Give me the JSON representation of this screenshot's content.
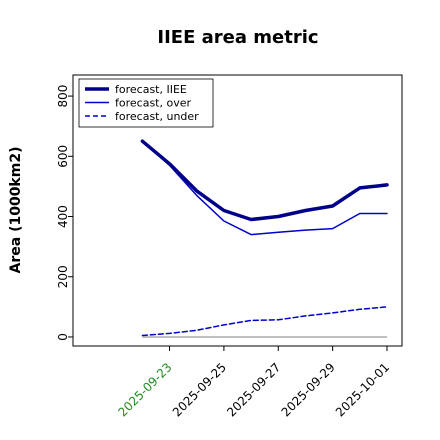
{
  "chart_data": {
    "type": "line",
    "title": "IIEE area metric",
    "xlabel": "",
    "ylabel": "Area (1000km2)",
    "x": [
      "2025-09-22",
      "2025-09-23",
      "2025-09-24",
      "2025-09-25",
      "2025-09-26",
      "2025-09-27",
      "2025-09-28",
      "2025-09-29",
      "2025-09-30",
      "2025-10-01"
    ],
    "xticks": [
      "2025-09-23",
      "2025-09-25",
      "2025-09-27",
      "2025-09-29",
      "2025-10-01"
    ],
    "xtick_colors": [
      "#228b22",
      "#000000",
      "#000000",
      "#000000",
      "#000000"
    ],
    "xlim": [
      "2025-09-20",
      "2025-10-01"
    ],
    "ylim": [
      -30,
      870
    ],
    "yticks": [
      0,
      200,
      400,
      600,
      800
    ],
    "legend_position": "top-left",
    "grid": false,
    "series": [
      {
        "name": "forecast, IIEE",
        "color": "#00008b",
        "style": "solid",
        "width": 3.5,
        "values": [
          650,
          575,
          485,
          420,
          390,
          400,
          420,
          435,
          495,
          505
        ]
      },
      {
        "name": "forecast, over",
        "color": "#0000cd",
        "style": "solid",
        "width": 1.5,
        "values": [
          650,
          570,
          470,
          385,
          340,
          348,
          355,
          360,
          410,
          410
        ]
      },
      {
        "name": "forecast, under",
        "color": "#0000cd",
        "style": "dashed",
        "width": 1.5,
        "values": [
          5,
          12,
          22,
          40,
          55,
          57,
          70,
          80,
          92,
          100
        ]
      }
    ],
    "baseline": {
      "value": 0,
      "color": "#808080"
    }
  }
}
